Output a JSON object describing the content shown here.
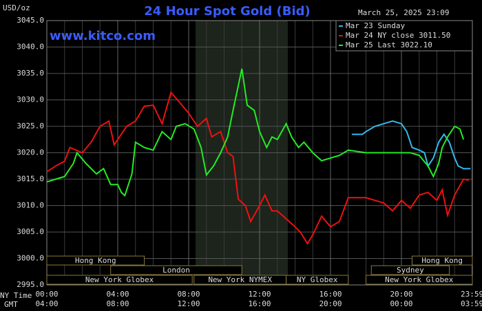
{
  "chart_data": {
    "type": "line",
    "title": "24 Hour Spot Gold (Bid)",
    "y_label": "USD/oz",
    "timestamp": "March 25, 2025 23:09",
    "site": "www.kitco.com",
    "x_label": "NY Time",
    "x2_label": "GMT",
    "xlim": [
      0,
      24
    ],
    "ylim": [
      2995,
      3045
    ],
    "yticks": [
      {
        "value": 2995,
        "label": "2995.0"
      },
      {
        "value": 3000,
        "label": "3000.0"
      },
      {
        "value": 3005,
        "label": "3005.0"
      },
      {
        "value": 3010,
        "label": "3010.0"
      },
      {
        "value": 3015,
        "label": "3015.0"
      },
      {
        "value": 3020,
        "label": "3020.0"
      },
      {
        "value": 3025,
        "label": "3025.0"
      },
      {
        "value": 3030,
        "label": "3030.0"
      },
      {
        "value": 3035,
        "label": "3035.0"
      },
      {
        "value": 3040,
        "label": "3040.0"
      },
      {
        "value": 3045,
        "label": "3045.0"
      }
    ],
    "xticks": [
      {
        "value": 0,
        "label": "00:00"
      },
      {
        "value": 4,
        "label": "04:00"
      },
      {
        "value": 8,
        "label": "08:00"
      },
      {
        "value": 12,
        "label": "12:00"
      },
      {
        "value": 16,
        "label": "16:00"
      },
      {
        "value": 20,
        "label": "20:00"
      },
      {
        "value": 23.983,
        "label": "23:59"
      }
    ],
    "x2ticks": [
      {
        "value": 0,
        "label": "04:00"
      },
      {
        "value": 4,
        "label": "08:00"
      },
      {
        "value": 8,
        "label": "12:00"
      },
      {
        "value": 12,
        "label": "16:00"
      },
      {
        "value": 16,
        "label": "20:00"
      },
      {
        "value": 20,
        "label": "00:00"
      },
      {
        "value": 23.983,
        "label": "03:59"
      }
    ],
    "grid": true,
    "sessions": [
      {
        "name": "Hong Kong",
        "start": 0,
        "end": 5.5,
        "row": 0
      },
      {
        "name": "London",
        "start": 3.6,
        "end": 11,
        "row": 1
      },
      {
        "name": "New York Globex",
        "start": 0,
        "end": 8.2,
        "row": 2
      },
      {
        "name": "New York NYMEX",
        "start": 8.3,
        "end": 13.5,
        "row": 2
      },
      {
        "name": "NY Globex",
        "start": 13.5,
        "end": 17,
        "row": 2
      },
      {
        "name": "Sydney",
        "start": 18.3,
        "end": 22.7,
        "row": 1
      },
      {
        "name": "Hong Kong",
        "start": 20.6,
        "end": 24,
        "row": 0
      },
      {
        "name": "New York Globex",
        "start": 18,
        "end": 24,
        "row": 2
      }
    ],
    "series": [
      {
        "name": "Mar 23 Sunday",
        "color": "#33bbee",
        "x": [
          17.2,
          17.8,
          18,
          18.5,
          19,
          19.5,
          20,
          20.3,
          20.6,
          21,
          21.3,
          21.5,
          21.8,
          22.1,
          22.4,
          22.7,
          23,
          23.2,
          23.5,
          23.9
        ],
        "values": [
          3023.5,
          3023.5,
          3024,
          3025,
          3025.5,
          3026,
          3025.5,
          3024,
          3021,
          3020.5,
          3020,
          3017.5,
          3019,
          3022,
          3023.5,
          3022,
          3019,
          3017.5,
          3017,
          3017
        ]
      },
      {
        "name": "Mar 24 NY close 3011.50",
        "color": "#ee1111",
        "x": [
          0,
          0.5,
          1,
          1.3,
          2,
          2.5,
          3,
          3.5,
          3.8,
          4.5,
          5,
          5.5,
          6,
          6.5,
          7,
          7.5,
          8,
          8.5,
          9,
          9.3,
          9.8,
          10.2,
          10.5,
          10.8,
          11.2,
          11.5,
          12,
          12.3,
          12.7,
          13,
          13.5,
          14,
          14.3,
          14.7,
          15,
          15.5,
          16,
          16.5,
          17,
          17.5,
          18,
          18.5,
          19,
          19.5,
          20,
          20.5,
          21,
          21.5,
          22,
          22.3,
          22.6,
          23,
          23.5,
          23.8
        ],
        "values": [
          3016.4,
          3017.5,
          3018.4,
          3021,
          3020,
          3022,
          3025,
          3026,
          3021.5,
          3025,
          3026,
          3028.8,
          3029,
          3025.5,
          3031.4,
          3029.5,
          3027.5,
          3025,
          3026.5,
          3023,
          3024,
          3020,
          3019.3,
          3011.2,
          3010,
          3007,
          3010,
          3012,
          3009,
          3009,
          3007.5,
          3006,
          3005,
          3002.8,
          3004.5,
          3008,
          3006,
          3007,
          3011.5,
          3011.5,
          3011.5,
          3011,
          3010.5,
          3009,
          3011,
          3009.5,
          3012,
          3012.5,
          3011,
          3013,
          3008.2,
          3012,
          3015,
          3014.8
        ]
      },
      {
        "name": "Mar 25 Last 3022.10",
        "color": "#22ee22",
        "x": [
          0,
          0.5,
          1,
          1.5,
          1.7,
          2.2,
          2.8,
          3.2,
          3.6,
          4,
          4.2,
          4.4,
          4.8,
          5,
          5.5,
          6,
          6.5,
          7,
          7.3,
          7.8,
          8.3,
          8.7,
          9,
          9.4,
          9.8,
          10.2,
          10.5,
          11,
          11.3,
          11.7,
          12,
          12.4,
          12.7,
          13,
          13.5,
          13.8,
          14.2,
          14.5,
          15,
          15.5,
          16,
          16.5,
          17,
          18,
          19,
          20,
          20.5,
          21,
          21.5,
          21.8,
          22.1,
          22.3,
          22.6,
          23,
          23.3,
          23.5
        ],
        "values": [
          3014.5,
          3015,
          3015.5,
          3018,
          3020,
          3018,
          3016,
          3017,
          3014,
          3014,
          3012.5,
          3011.9,
          3016,
          3022,
          3021,
          3020.5,
          3024,
          3022.5,
          3025,
          3025.5,
          3024.5,
          3021,
          3015.8,
          3017.5,
          3020,
          3023,
          3028,
          3035.9,
          3029,
          3028,
          3024,
          3021,
          3023,
          3022.5,
          3025.5,
          3023,
          3021,
          3022,
          3020,
          3018.5,
          3019,
          3019.5,
          3020.5,
          3020,
          3020,
          3020,
          3020,
          3019.5,
          3017.5,
          3015.5,
          3018,
          3021,
          3023,
          3025,
          3024.5,
          3022.5
        ]
      }
    ]
  }
}
